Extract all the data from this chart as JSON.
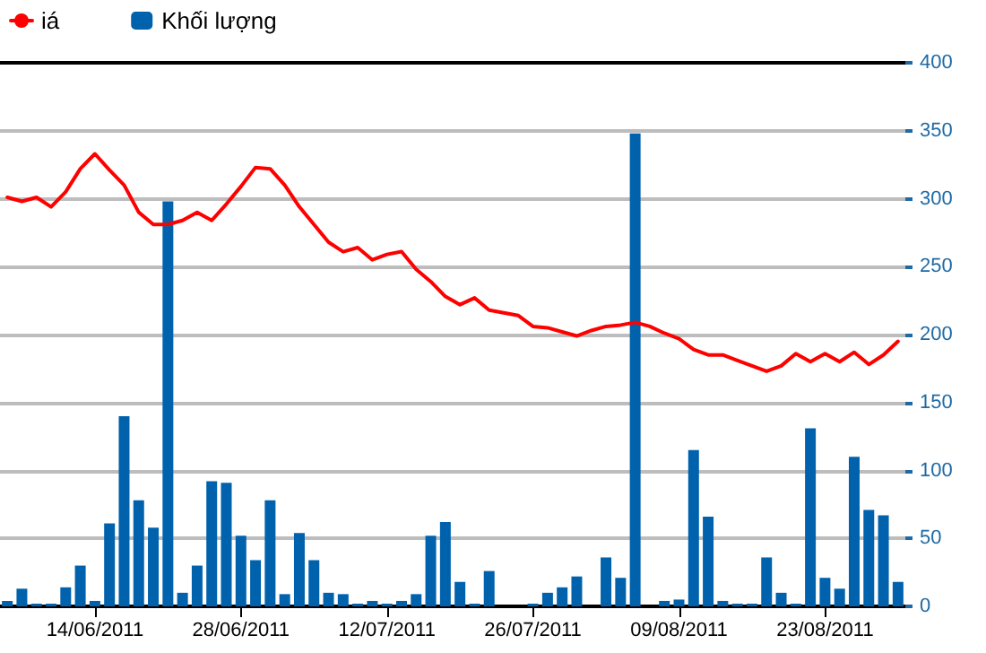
{
  "chart_data": {
    "type": "bar",
    "categories": [
      null,
      null,
      null,
      null,
      null,
      null,
      "14/06/2011",
      null,
      null,
      null,
      null,
      null,
      null,
      null,
      null,
      null,
      "28/06/2011",
      null,
      null,
      null,
      null,
      null,
      null,
      null,
      null,
      null,
      "12/07/2011",
      null,
      null,
      null,
      null,
      null,
      null,
      null,
      null,
      null,
      "26/07/2011",
      null,
      null,
      null,
      null,
      null,
      null,
      null,
      null,
      null,
      "09/08/2011",
      null,
      null,
      null,
      null,
      null,
      null,
      null,
      null,
      null,
      "23/08/2011",
      null,
      null,
      null,
      null,
      null
    ],
    "series": [
      {
        "name": "iá",
        "type": "line",
        "color": "#ff0000",
        "values": [
          301,
          298,
          301,
          294,
          305,
          322,
          333,
          321,
          310,
          290,
          281,
          281,
          284,
          290,
          284,
          296,
          309,
          323,
          322,
          310,
          294,
          281,
          268,
          261,
          264,
          255,
          259,
          261,
          248,
          239,
          228,
          222,
          227,
          218,
          216,
          214,
          206,
          205,
          202,
          199,
          203,
          206,
          207,
          209,
          206,
          201,
          197,
          189,
          185,
          185,
          181,
          177,
          173,
          177,
          186,
          180,
          186,
          180,
          187,
          178,
          185,
          195
        ]
      },
      {
        "name": "Khối lượng",
        "color": "#0062ad",
        "values": [
          4,
          13,
          2,
          2,
          14,
          30,
          4,
          61,
          140,
          78,
          58,
          298,
          10,
          30,
          92,
          91,
          52,
          34,
          78,
          9,
          54,
          34,
          10,
          9,
          2,
          4,
          2,
          4,
          9,
          52,
          62,
          18,
          2,
          26,
          0,
          0,
          2,
          10,
          14,
          22,
          0,
          36,
          21,
          348,
          0,
          4,
          5,
          115,
          66,
          4,
          2,
          2,
          36,
          10,
          2,
          131,
          21,
          13,
          110,
          71,
          67,
          18
        ]
      }
    ],
    "ylim": [
      0,
      400
    ],
    "yticks": [
      0,
      50,
      100,
      150,
      200,
      250,
      300,
      350,
      400
    ],
    "grid": "y",
    "legend": "top left",
    "marker": "none",
    "line_style": "solid"
  }
}
